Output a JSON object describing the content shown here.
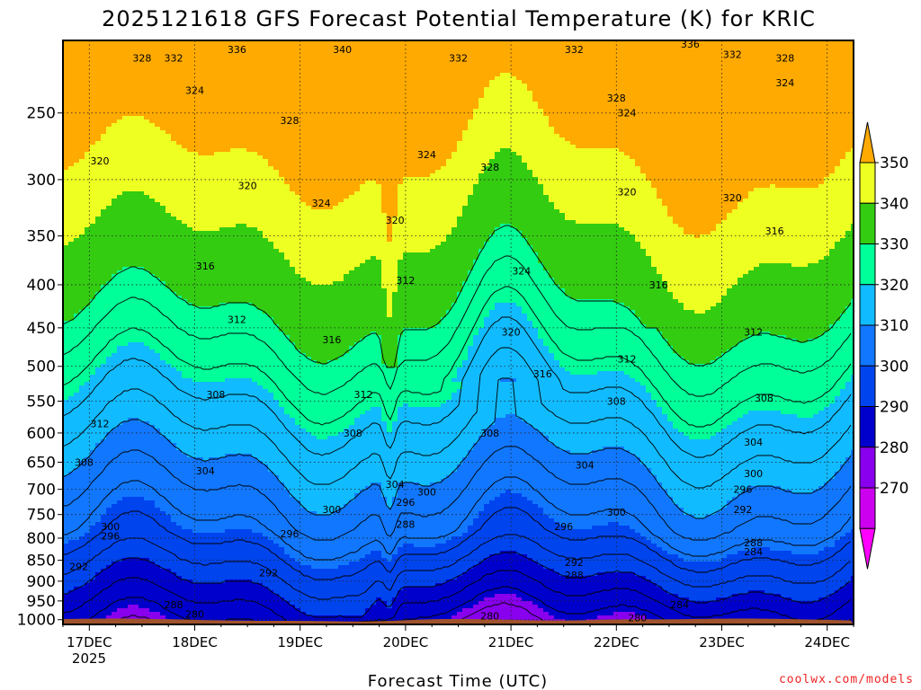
{
  "chart_data": {
    "type": "heatmap",
    "subtype": "time-height filled contour",
    "title": "2025121618 GFS Forecast Potential Temperature (K) for KRIC",
    "xlabel": "Forecast Time (UTC)",
    "ylabel": "",
    "credit": "coolwx.com/models",
    "x_ticks": [
      "17DEC",
      "18DEC",
      "19DEC",
      "20DEC",
      "21DEC",
      "22DEC",
      "23DEC",
      "24DEC"
    ],
    "x_year": "2025",
    "x_range_days": [
      16.75,
      24.25
    ],
    "y_ticks": [
      250,
      300,
      350,
      400,
      450,
      500,
      550,
      600,
      650,
      700,
      750,
      800,
      850,
      900,
      950,
      1000
    ],
    "y_range_hpa": [
      205,
      1013
    ],
    "colorbar": {
      "ticks": [
        270,
        280,
        290,
        300,
        310,
        320,
        330,
        340,
        350
      ],
      "bins": [
        {
          "from": 260,
          "to": 270,
          "color": "#ff00ff"
        },
        {
          "from": 270,
          "to": 280,
          "color": "#cc00ee"
        },
        {
          "from": 280,
          "to": 290,
          "color": "#8800ee"
        },
        {
          "from": 290,
          "to": 300,
          "color": "#0000cc"
        },
        {
          "from": 300,
          "to": 310,
          "color": "#0044ee"
        },
        {
          "from": 310,
          "to": 320,
          "color": "#1177ff"
        },
        {
          "from": 320,
          "to": 330,
          "color": "#11bbff"
        },
        {
          "from": 330,
          "to": 340,
          "color": "#00ff99"
        },
        {
          "from": 340,
          "to": 350,
          "color": "#33cc11"
        },
        {
          "from": 350,
          "to": 360,
          "color": "#eeff22"
        },
        {
          "from": 360,
          "to": 370,
          "color": "#ffaa00"
        }
      ]
    },
    "ground_color": "#a0522d",
    "isentropes_K": [
      {
        "theta": 280,
        "label_positions": [
          [
            18.0,
            985
          ],
          [
            20.8,
            990
          ],
          [
            22.2,
            995
          ]
        ]
      },
      {
        "theta": 284,
        "label_positions": [
          [
            22.6,
            960
          ],
          [
            23.3,
            830
          ]
        ]
      },
      {
        "theta": 288,
        "label_positions": [
          [
            17.8,
            960
          ],
          [
            20.0,
            770
          ],
          [
            21.6,
            885
          ],
          [
            23.3,
            810
          ]
        ]
      },
      {
        "theta": 292,
        "label_positions": [
          [
            16.9,
            865
          ],
          [
            18.7,
            880
          ],
          [
            21.6,
            855
          ],
          [
            23.2,
            740
          ]
        ]
      },
      {
        "theta": 296,
        "label_positions": [
          [
            17.2,
            795
          ],
          [
            18.9,
            790
          ],
          [
            20.0,
            725
          ],
          [
            21.5,
            775
          ],
          [
            23.2,
            700
          ]
        ]
      },
      {
        "theta": 300,
        "label_positions": [
          [
            17.2,
            775
          ],
          [
            19.3,
            740
          ],
          [
            20.2,
            705
          ],
          [
            22.0,
            745
          ],
          [
            23.3,
            670
          ]
        ]
      },
      {
        "theta": 304,
        "label_positions": [
          [
            18.1,
            665
          ],
          [
            19.9,
            690
          ],
          [
            21.7,
            655
          ],
          [
            23.3,
            615
          ]
        ]
      },
      {
        "theta": 308,
        "label_positions": [
          [
            16.95,
            650
          ],
          [
            18.2,
            540
          ],
          [
            19.5,
            600
          ],
          [
            20.8,
            600
          ],
          [
            22.0,
            550
          ],
          [
            23.4,
            545
          ]
        ]
      },
      {
        "theta": 312,
        "label_positions": [
          [
            17.1,
            585
          ],
          [
            18.4,
            440
          ],
          [
            19.6,
            540
          ],
          [
            20.0,
            395
          ],
          [
            22.1,
            490
          ],
          [
            23.3,
            455
          ]
        ]
      },
      {
        "theta": 316,
        "label_positions": [
          [
            18.1,
            380
          ],
          [
            19.3,
            465
          ],
          [
            21.3,
            510
          ],
          [
            22.4,
            400
          ],
          [
            23.5,
            345
          ]
        ]
      },
      {
        "theta": 320,
        "label_positions": [
          [
            17.1,
            285
          ],
          [
            18.5,
            305
          ],
          [
            19.9,
            335
          ],
          [
            21.0,
            455
          ],
          [
            22.1,
            310
          ],
          [
            23.1,
            315
          ]
        ]
      },
      {
        "theta": 324,
        "label_positions": [
          [
            18.0,
            235
          ],
          [
            19.2,
            320
          ],
          [
            20.2,
            280
          ],
          [
            21.1,
            385
          ],
          [
            22.1,
            250
          ],
          [
            23.6,
            230
          ]
        ]
      },
      {
        "theta": 328,
        "label_positions": [
          [
            17.5,
            215
          ],
          [
            18.9,
            255
          ],
          [
            20.8,
            290
          ],
          [
            22.0,
            240
          ],
          [
            23.6,
            215
          ]
        ]
      },
      {
        "theta": 332,
        "label_positions": [
          [
            17.8,
            215
          ],
          [
            20.5,
            215
          ],
          [
            21.6,
            210
          ],
          [
            23.1,
            213
          ]
        ]
      },
      {
        "theta": 336,
        "label_positions": [
          [
            18.4,
            210
          ],
          [
            22.7,
            207
          ]
        ]
      },
      {
        "theta": 340,
        "label_positions": [
          [
            19.4,
            210
          ]
        ]
      }
    ]
  }
}
